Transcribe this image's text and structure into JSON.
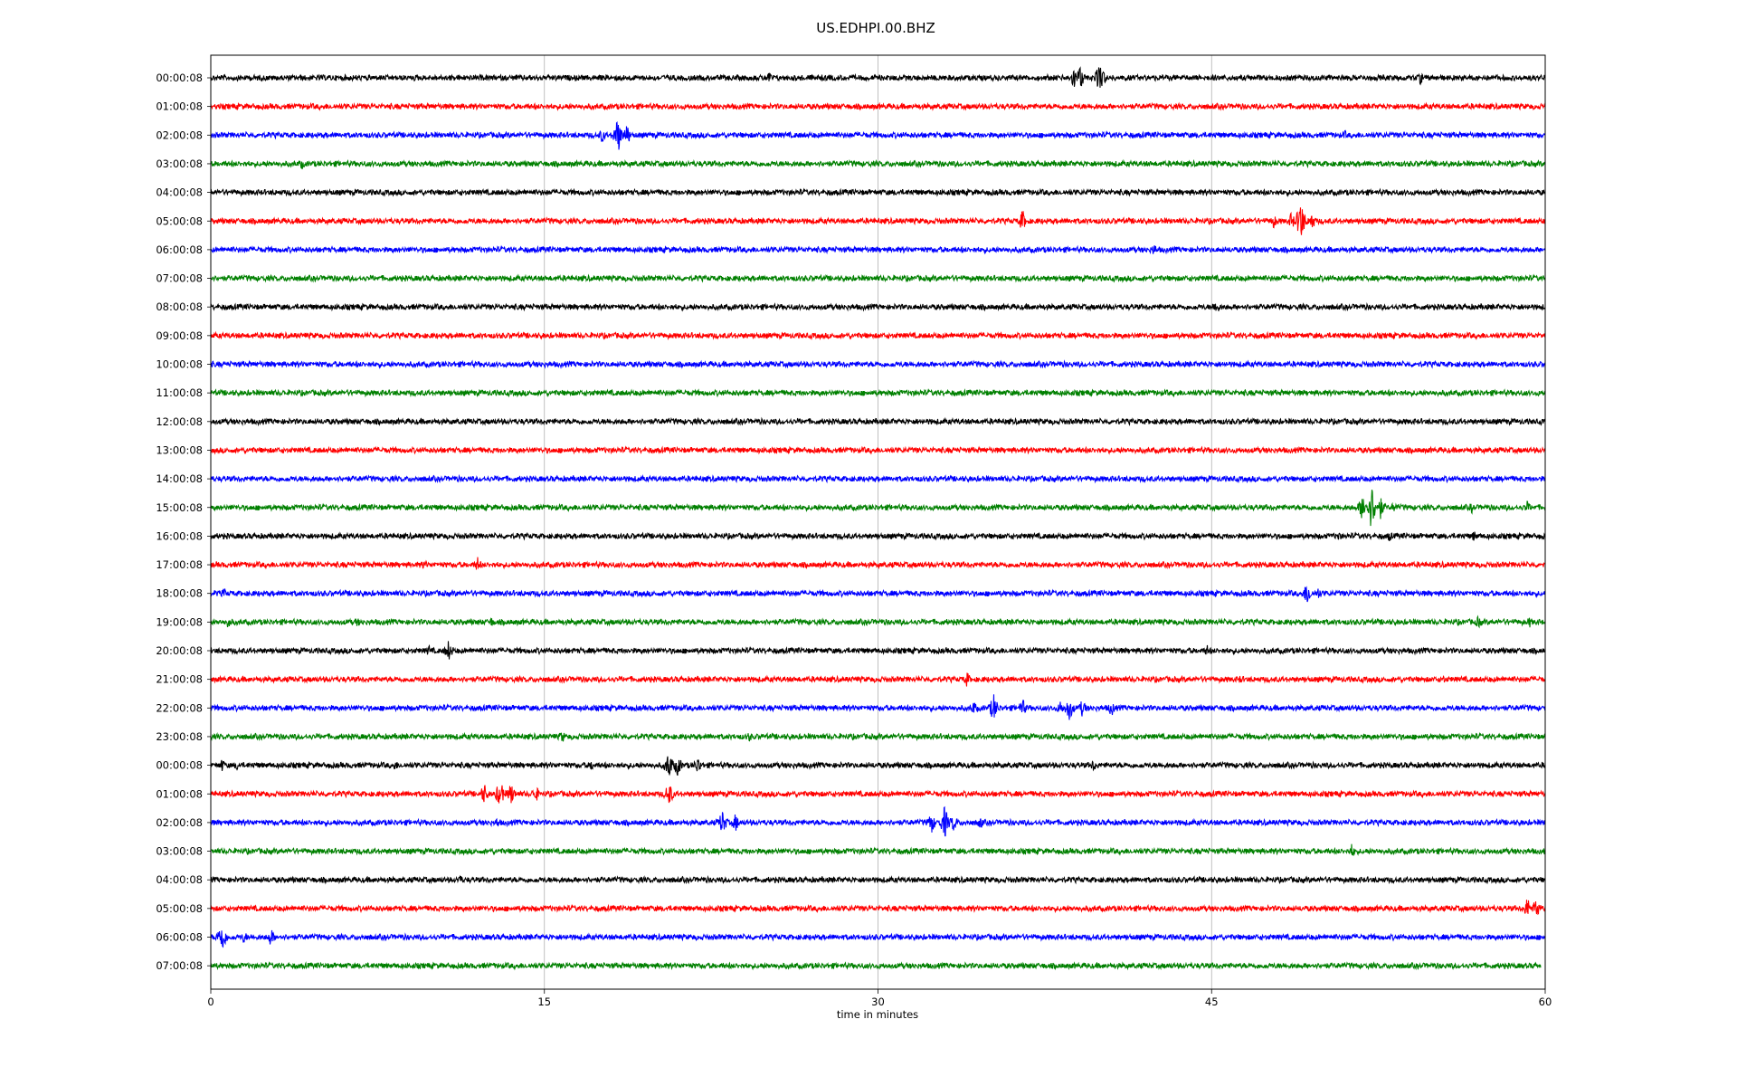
{
  "chart_data": {
    "type": "line",
    "title": "US.EDHPI.00.BHZ",
    "xlabel": "time in minutes",
    "ylabel": "",
    "xlim": [
      0,
      60
    ],
    "x_ticks": [
      "0",
      "15",
      "30",
      "45",
      "60"
    ],
    "x_tick_values": [
      0,
      15,
      30,
      45,
      60
    ],
    "grid": "vertical",
    "trace_colors": [
      "#000000",
      "#ff0000",
      "#0000ff",
      "#008000"
    ],
    "rows": [
      {
        "label": "00:00:08",
        "events": [
          [
            25.1,
            0.35
          ],
          [
            38.8,
            0.6
          ],
          [
            39.1,
            0.7
          ],
          [
            39.9,
            0.6
          ],
          [
            40.0,
            0.9
          ],
          [
            54.4,
            0.35
          ]
        ]
      },
      {
        "label": "01:00:08",
        "events": []
      },
      {
        "label": "02:00:08",
        "events": [
          [
            17.6,
            0.4
          ],
          [
            18.3,
            1.0
          ],
          [
            18.7,
            0.6
          ],
          [
            51.0,
            0.25
          ]
        ]
      },
      {
        "label": "03:00:08",
        "events": [
          [
            4.1,
            0.3
          ]
        ]
      },
      {
        "label": "04:00:08",
        "events": []
      },
      {
        "label": "05:00:08",
        "events": [
          [
            36.5,
            0.6
          ],
          [
            47.8,
            0.4
          ],
          [
            48.6,
            0.5
          ],
          [
            49.0,
            1.2
          ],
          [
            49.5,
            0.5
          ]
        ]
      },
      {
        "label": "06:00:08",
        "events": [
          [
            42.4,
            0.35
          ]
        ]
      },
      {
        "label": "07:00:08",
        "events": []
      },
      {
        "label": "08:00:08",
        "events": [
          [
            45.2,
            0.45
          ]
        ]
      },
      {
        "label": "09:00:08",
        "events": []
      },
      {
        "label": "10:00:08",
        "events": []
      },
      {
        "label": "11:00:08",
        "events": []
      },
      {
        "label": "12:00:08",
        "events": [
          [
            30.5,
            0.2
          ]
        ]
      },
      {
        "label": "13:00:08",
        "events": []
      },
      {
        "label": "14:00:08",
        "events": []
      },
      {
        "label": "15:00:08",
        "events": [
          [
            51.8,
            0.8
          ],
          [
            52.2,
            1.3
          ],
          [
            52.6,
            0.6
          ],
          [
            53.2,
            0.3
          ],
          [
            56.7,
            0.3
          ],
          [
            59.2,
            0.35
          ]
        ]
      },
      {
        "label": "16:00:08",
        "events": [
          [
            50.7,
            0.3
          ],
          [
            53.0,
            0.3
          ],
          [
            56.8,
            0.3
          ]
        ]
      },
      {
        "label": "17:00:08",
        "events": [
          [
            9.6,
            0.3
          ],
          [
            12.0,
            0.4
          ]
        ]
      },
      {
        "label": "18:00:08",
        "events": [
          [
            0.6,
            0.3
          ],
          [
            49.3,
            0.7
          ],
          [
            49.8,
            0.35
          ]
        ]
      },
      {
        "label": "19:00:08",
        "events": [
          [
            0.8,
            0.35
          ],
          [
            6.6,
            0.25
          ],
          [
            12.6,
            0.3
          ],
          [
            57.0,
            0.35
          ],
          [
            59.3,
            0.3
          ]
        ]
      },
      {
        "label": "20:00:08",
        "events": [
          [
            9.8,
            0.3
          ],
          [
            10.7,
            0.6
          ],
          [
            44.8,
            0.3
          ]
        ]
      },
      {
        "label": "21:00:08",
        "events": [
          [
            34.0,
            0.4
          ],
          [
            46.3,
            0.25
          ],
          [
            55.4,
            0.25
          ]
        ]
      },
      {
        "label": "22:00:08",
        "events": [
          [
            34.3,
            0.4
          ],
          [
            35.2,
            0.8
          ],
          [
            36.5,
            0.5
          ],
          [
            38.2,
            0.4
          ],
          [
            38.6,
            0.7
          ],
          [
            39.2,
            0.5
          ],
          [
            40.5,
            0.45
          ]
        ]
      },
      {
        "label": "23:00:08",
        "events": [
          [
            15.8,
            0.35
          ],
          [
            24.2,
            0.3
          ]
        ]
      },
      {
        "label": "00:00:08",
        "events": [
          [
            0.5,
            0.35
          ],
          [
            1.2,
            0.3
          ],
          [
            8.3,
            0.3
          ],
          [
            17.1,
            0.3
          ],
          [
            20.6,
            0.8
          ],
          [
            21.0,
            0.6
          ],
          [
            21.9,
            0.5
          ],
          [
            39.7,
            0.35
          ]
        ]
      },
      {
        "label": "01:00:08",
        "events": [
          [
            12.3,
            0.6
          ],
          [
            13.0,
            0.8
          ],
          [
            13.5,
            0.6
          ],
          [
            14.6,
            0.5
          ],
          [
            20.6,
            0.7
          ]
        ]
      },
      {
        "label": "02:00:08",
        "events": [
          [
            12.9,
            0.3
          ],
          [
            23.0,
            0.7
          ],
          [
            23.6,
            0.5
          ],
          [
            32.4,
            0.6
          ],
          [
            33.0,
            0.9
          ],
          [
            33.4,
            0.5
          ],
          [
            34.6,
            0.35
          ]
        ]
      },
      {
        "label": "03:00:08",
        "events": [
          [
            51.3,
            0.4
          ]
        ]
      },
      {
        "label": "04:00:08",
        "events": [
          [
            11.2,
            0.3
          ]
        ]
      },
      {
        "label": "05:00:08",
        "events": [
          [
            59.2,
            0.6
          ],
          [
            59.6,
            0.6
          ]
        ]
      },
      {
        "label": "06:00:08",
        "events": [
          [
            0.5,
            0.9
          ],
          [
            1.5,
            0.35
          ],
          [
            2.7,
            0.5
          ]
        ]
      },
      {
        "label": "07:00:08",
        "events": [],
        "end": 59.8
      }
    ]
  }
}
